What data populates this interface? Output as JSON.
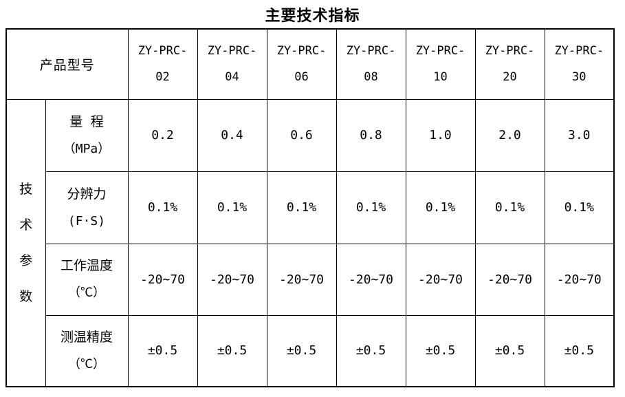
{
  "title": "主要技术指标",
  "table": {
    "product_model_label": "产品型号",
    "group_label": "技术参数",
    "models": [
      {
        "line1": "ZY-PRC-",
        "line2": "02"
      },
      {
        "line1": "ZY-PRC-",
        "line2": "04"
      },
      {
        "line1": "ZY-PRC-",
        "line2": "06"
      },
      {
        "line1": "ZY-PRC-",
        "line2": "08"
      },
      {
        "line1": "ZY-PRC-",
        "line2": "10"
      },
      {
        "line1": "ZY-PRC-",
        "line2": "20"
      },
      {
        "line1": "ZY-PRC-",
        "line2": "30"
      }
    ],
    "rows": [
      {
        "label_line1": "量 程",
        "label_line2": "（MPa）",
        "values": [
          "0.2",
          "0.4",
          "0.6",
          "0.8",
          "1.0",
          "2.0",
          "3.0"
        ]
      },
      {
        "label_line1": "分辨力",
        "label_line2": "(F·S)",
        "values": [
          "0.1%",
          "0.1%",
          "0.1%",
          "0.1%",
          "0.1%",
          "0.1%",
          "0.1%"
        ]
      },
      {
        "label_line1": "工作温度",
        "label_line2": "（℃）",
        "values": [
          "-20~70",
          "-20~70",
          "-20~70",
          "-20~70",
          "-20~70",
          "-20~70",
          "-20~70"
        ]
      },
      {
        "label_line1": "测温精度",
        "label_line2": "（℃）",
        "values": [
          "±0.5",
          "±0.5",
          "±0.5",
          "±0.5",
          "±0.5",
          "±0.5",
          "±0.5"
        ]
      }
    ]
  }
}
